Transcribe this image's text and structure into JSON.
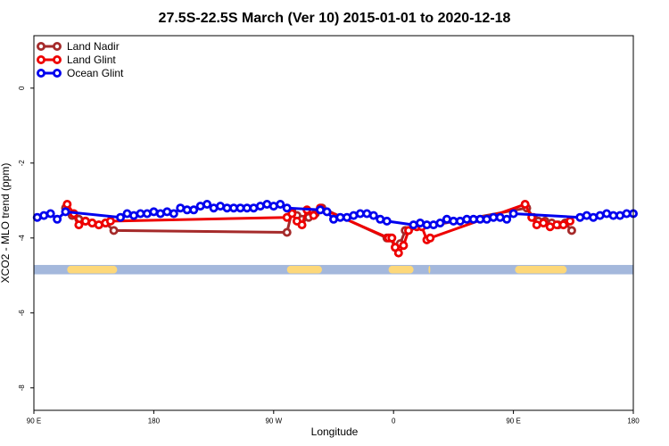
{
  "chart_data": {
    "type": "line",
    "title": "27.5S-22.5S March (Ver 10)   2015-01-01 to 2020-12-18",
    "xlabel": "Longitude",
    "ylabel": "XCO2 - MLO trend (ppm)",
    "xlim": [
      90,
      450
    ],
    "ylim": [
      -8.6,
      1.4
    ],
    "x_ticks": [
      {
        "value": 90,
        "label": "90 E"
      },
      {
        "value": 162,
        "label": "180"
      },
      {
        "value": 234,
        "label": "90 W"
      },
      {
        "value": 306,
        "label": "0"
      },
      {
        "value": 378,
        "label": "90 E"
      },
      {
        "value": 450,
        "label": "180"
      }
    ],
    "y_ticks": [
      {
        "value": 0,
        "label": "0"
      },
      {
        "value": -2,
        "label": "-2"
      },
      {
        "value": -4,
        "label": "-4"
      },
      {
        "value": -6,
        "label": "-6"
      },
      {
        "value": -8,
        "label": "-8"
      }
    ],
    "legend": {
      "position": "top-left",
      "items": [
        "Land Nadir",
        "Land Glint",
        "Ocean Glint"
      ]
    },
    "land_sea_band": {
      "y_range": [
        -4.97,
        -4.72
      ],
      "sea_color": "#a4b8dc",
      "land_color": "#fdd87a",
      "land_x_ranges": [
        [
          110,
          140
        ],
        [
          242,
          263
        ],
        [
          303,
          318
        ],
        [
          327,
          328
        ],
        [
          379,
          410
        ]
      ]
    },
    "series": [
      {
        "name": "Land Nadir",
        "color": "#a52a2a",
        "x": [
          109,
          113,
          117,
          121,
          125,
          129,
          133,
          138,
          242,
          245,
          248,
          251,
          255,
          259,
          263,
          302,
          304,
          307,
          310,
          313,
          386,
          390,
          393,
          397,
          401,
          405,
          409,
          413
        ],
        "y": [
          -3.2,
          -3.4,
          -3.5,
          -3.55,
          -3.6,
          -3.65,
          -3.6,
          -3.8,
          -3.85,
          -3.3,
          -3.4,
          -3.5,
          -3.45,
          -3.35,
          -3.2,
          -4.0,
          -4.0,
          -4.25,
          -4.15,
          -3.8,
          -3.2,
          -3.45,
          -3.55,
          -3.55,
          -3.6,
          -3.65,
          -3.6,
          -3.8
        ]
      },
      {
        "name": "Land Glint",
        "color": "#ee0000",
        "x": [
          110,
          114,
          117,
          121,
          125,
          129,
          133,
          136,
          242,
          245,
          248,
          251,
          254,
          258,
          262,
          303,
          305,
          307,
          309,
          312,
          315,
          320,
          323,
          326,
          328,
          385,
          389,
          392,
          396,
          400,
          404,
          408,
          412
        ],
        "y": [
          -3.1,
          -3.35,
          -3.65,
          -3.55,
          -3.6,
          -3.65,
          -3.6,
          -3.55,
          -3.45,
          -3.35,
          -3.55,
          -3.65,
          -3.25,
          -3.4,
          -3.2,
          -4.0,
          -4.0,
          -4.25,
          -4.4,
          -4.2,
          -3.8,
          -3.7,
          -3.7,
          -4.05,
          -4.0,
          -3.1,
          -3.45,
          -3.65,
          -3.6,
          -3.7,
          -3.65,
          -3.65,
          -3.55
        ]
      },
      {
        "name": "Ocean Glint",
        "color": "#0000ee",
        "x": [
          92,
          96,
          100,
          104,
          109,
          142,
          146,
          150,
          154,
          158,
          162,
          166,
          170,
          174,
          178,
          182,
          186,
          190,
          194,
          198,
          202,
          206,
          210,
          214,
          218,
          222,
          226,
          230,
          234,
          238,
          242,
          262,
          266,
          270,
          274,
          278,
          282,
          286,
          290,
          294,
          298,
          302,
          318,
          322,
          326,
          330,
          334,
          338,
          342,
          346,
          350,
          354,
          358,
          362,
          366,
          370,
          374,
          378,
          418,
          422,
          426,
          430,
          434,
          438,
          442,
          446,
          450
        ],
        "y": [
          -3.45,
          -3.4,
          -3.35,
          -3.5,
          -3.3,
          -3.45,
          -3.35,
          -3.4,
          -3.35,
          -3.35,
          -3.3,
          -3.35,
          -3.3,
          -3.35,
          -3.2,
          -3.25,
          -3.25,
          -3.15,
          -3.1,
          -3.2,
          -3.15,
          -3.2,
          -3.2,
          -3.2,
          -3.2,
          -3.2,
          -3.15,
          -3.1,
          -3.15,
          -3.1,
          -3.2,
          -3.25,
          -3.3,
          -3.5,
          -3.45,
          -3.45,
          -3.4,
          -3.35,
          -3.35,
          -3.4,
          -3.5,
          -3.55,
          -3.65,
          -3.6,
          -3.65,
          -3.65,
          -3.6,
          -3.5,
          -3.55,
          -3.55,
          -3.5,
          -3.5,
          -3.5,
          -3.5,
          -3.45,
          -3.45,
          -3.5,
          -3.35,
          -3.45,
          -3.4,
          -3.45,
          -3.4,
          -3.35,
          -3.4,
          -3.4,
          -3.35,
          -3.35
        ]
      }
    ]
  }
}
